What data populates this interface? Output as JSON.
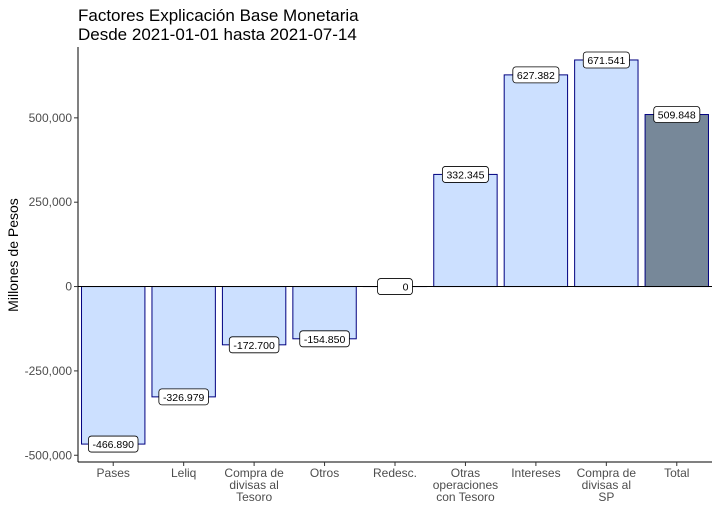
{
  "chart_data": {
    "type": "bar",
    "title": "Factores Explicación Base Monetaria",
    "subtitle": "Desde 2021-01-01 hasta 2021-07-14",
    "xlabel": "",
    "ylabel": "Millones de Pesos",
    "ylim": [
      -520000,
      710000
    ],
    "yticks": [
      -500000,
      -250000,
      0,
      250000,
      500000
    ],
    "ytick_labels": [
      "-500,000",
      "-250,000",
      "0",
      "250,000",
      "500,000"
    ],
    "categories": [
      [
        "Pases"
      ],
      [
        "Leliq"
      ],
      [
        "Compra de",
        "divisas al",
        "Tesoro"
      ],
      [
        "Otros"
      ],
      [
        "Redesc."
      ],
      [
        "Otras",
        "operaciones",
        "con Tesoro"
      ],
      [
        "Intereses"
      ],
      [
        "Compra de",
        "divisas al",
        "SP"
      ],
      [
        "Total"
      ]
    ],
    "values": [
      -466890,
      -326979,
      -172700,
      -154850,
      0,
      332345,
      627382,
      671541,
      509848
    ],
    "value_labels": [
      "-466.890",
      "-326.979",
      "-172.700",
      "-154.850",
      "0",
      "332.345",
      "627.382",
      "671.541",
      "509.848"
    ],
    "colors": {
      "factor_fill": "#cce0ff",
      "total_fill": "#778899",
      "bar_outline": "#000080",
      "axis": "#000000",
      "label_box_fill": "#ffffff"
    },
    "grid": false,
    "legend": "none"
  }
}
